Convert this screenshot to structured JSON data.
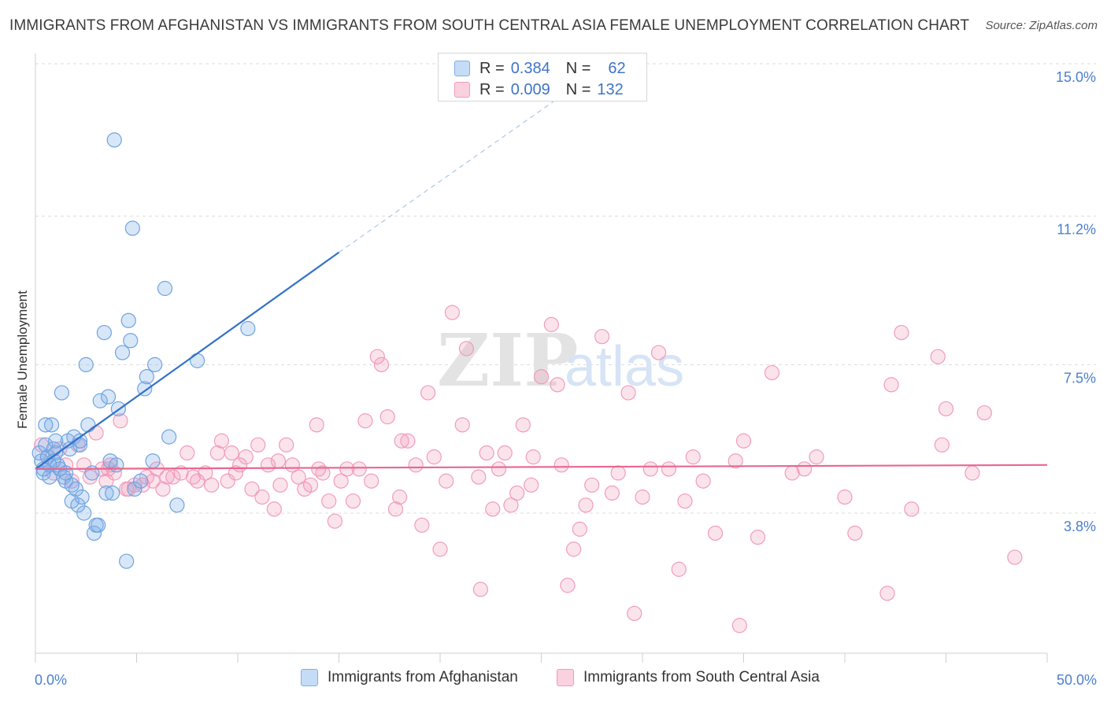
{
  "header": {
    "title": "IMMIGRANTS FROM AFGHANISTAN VS IMMIGRANTS FROM SOUTH CENTRAL ASIA FEMALE UNEMPLOYMENT CORRELATION CHART",
    "source": "Source: ZipAtlas.com"
  },
  "watermark": {
    "zip": "ZIP",
    "atlas": "atlas"
  },
  "legend": {
    "rows": [
      {
        "r_label": "R =",
        "r_value": "0.384",
        "n_label": "N =",
        "n_value": "62"
      },
      {
        "r_label": "R =",
        "r_value": "0.009",
        "n_label": "N =",
        "n_value": "132"
      }
    ]
  },
  "colors": {
    "blue": "#7fb0e8",
    "blue_line": "#3272c9",
    "pink": "#f19cba",
    "pink_line": "#e8678f",
    "tick": "#4a7fcf"
  },
  "chart_data": {
    "type": "scatter",
    "title": "IMMIGRANTS FROM AFGHANISTAN VS IMMIGRANTS FROM SOUTH CENTRAL ASIA FEMALE UNEMPLOYMENT CORRELATION CHART",
    "xlabel": "",
    "ylabel": "Female Unemployment",
    "xlim": [
      0,
      50
    ],
    "ylim": [
      0,
      15.8
    ],
    "x_ticks": [
      {
        "value": 0,
        "label": "0.0%"
      },
      {
        "value": 50,
        "label": "50.0%"
      }
    ],
    "y_ticks": [
      {
        "value": 3.8,
        "label": "3.8%"
      },
      {
        "value": 7.5,
        "label": "7.5%"
      },
      {
        "value": 11.2,
        "label": "11.2%"
      },
      {
        "value": 15.0,
        "label": "15.0%"
      }
    ],
    "grid": true,
    "legend_position": "top-center",
    "series": [
      {
        "name": "Immigrants from Afghanistan",
        "color": "#7fb0e8",
        "trend": {
          "x0": 0,
          "y0": 4.9,
          "x1": 15,
          "y1": 10.3,
          "dashed_to_x": 26,
          "dashed_to_y": 14.2
        },
        "points": [
          [
            0.2,
            5.3
          ],
          [
            0.3,
            5.1
          ],
          [
            0.4,
            4.8
          ],
          [
            0.5,
            5.5
          ],
          [
            0.6,
            5.2
          ],
          [
            0.7,
            4.7
          ],
          [
            0.8,
            6.0
          ],
          [
            0.9,
            5.1
          ],
          [
            1.0,
            5.3
          ],
          [
            1.1,
            5.0
          ],
          [
            1.2,
            4.9
          ],
          [
            1.3,
            6.8
          ],
          [
            1.4,
            4.7
          ],
          [
            1.5,
            4.6
          ],
          [
            1.6,
            5.6
          ],
          [
            1.7,
            5.4
          ],
          [
            1.8,
            4.1
          ],
          [
            1.9,
            5.7
          ],
          [
            2.0,
            4.4
          ],
          [
            2.1,
            4.0
          ],
          [
            2.2,
            5.5
          ],
          [
            2.3,
            4.2
          ],
          [
            2.4,
            3.8
          ],
          [
            2.5,
            7.5
          ],
          [
            2.6,
            6.0
          ],
          [
            2.8,
            4.8
          ],
          [
            2.9,
            3.3
          ],
          [
            3.0,
            3.5
          ],
          [
            3.1,
            3.5
          ],
          [
            3.2,
            6.6
          ],
          [
            3.4,
            8.3
          ],
          [
            3.5,
            4.3
          ],
          [
            3.6,
            6.7
          ],
          [
            3.7,
            5.1
          ],
          [
            3.8,
            4.3
          ],
          [
            3.9,
            13.1
          ],
          [
            4.0,
            5.0
          ],
          [
            4.1,
            6.4
          ],
          [
            4.3,
            7.8
          ],
          [
            4.5,
            2.6
          ],
          [
            4.6,
            8.6
          ],
          [
            4.7,
            8.1
          ],
          [
            4.8,
            10.9
          ],
          [
            4.9,
            4.4
          ],
          [
            5.2,
            4.6
          ],
          [
            5.4,
            6.9
          ],
          [
            5.5,
            7.2
          ],
          [
            5.8,
            5.1
          ],
          [
            5.9,
            7.5
          ],
          [
            6.4,
            9.4
          ],
          [
            6.6,
            5.7
          ],
          [
            7.0,
            4.0
          ],
          [
            8.0,
            7.6
          ],
          [
            10.5,
            8.4
          ],
          [
            0.5,
            6.0
          ],
          [
            1.0,
            5.6
          ],
          [
            0.7,
            5.0
          ],
          [
            1.5,
            4.8
          ],
          [
            2.2,
            5.6
          ],
          [
            0.9,
            5.4
          ],
          [
            1.8,
            4.5
          ],
          [
            0.4,
            4.9
          ]
        ]
      },
      {
        "name": "Immigrants from South Central Asia",
        "color": "#f19cba",
        "trend": {
          "x0": 0,
          "y0": 4.9,
          "x1": 50,
          "y1": 5.0
        },
        "points": [
          [
            0.3,
            5.5
          ],
          [
            0.6,
            5.2
          ],
          [
            0.9,
            4.8
          ],
          [
            1.2,
            5.4
          ],
          [
            1.5,
            5.0
          ],
          [
            1.8,
            4.6
          ],
          [
            2.1,
            5.5
          ],
          [
            2.4,
            5.0
          ],
          [
            2.7,
            4.7
          ],
          [
            3.0,
            5.8
          ],
          [
            3.3,
            4.9
          ],
          [
            3.5,
            4.6
          ],
          [
            3.6,
            4.9
          ],
          [
            3.7,
            5.0
          ],
          [
            3.9,
            4.8
          ],
          [
            4.2,
            6.1
          ],
          [
            4.5,
            4.4
          ],
          [
            4.6,
            4.4
          ],
          [
            4.9,
            4.5
          ],
          [
            5.3,
            4.5
          ],
          [
            5.5,
            4.7
          ],
          [
            5.8,
            4.6
          ],
          [
            6.0,
            4.9
          ],
          [
            6.3,
            4.4
          ],
          [
            6.5,
            4.7
          ],
          [
            6.8,
            4.7
          ],
          [
            7.2,
            4.8
          ],
          [
            7.5,
            5.3
          ],
          [
            7.8,
            4.7
          ],
          [
            8.0,
            4.6
          ],
          [
            8.4,
            4.8
          ],
          [
            8.7,
            4.5
          ],
          [
            9.0,
            5.3
          ],
          [
            9.2,
            5.6
          ],
          [
            9.5,
            4.6
          ],
          [
            9.9,
            4.8
          ],
          [
            10.1,
            5.0
          ],
          [
            10.4,
            5.2
          ],
          [
            10.7,
            4.4
          ],
          [
            11.0,
            5.5
          ],
          [
            11.2,
            4.2
          ],
          [
            11.5,
            5.0
          ],
          [
            11.8,
            3.9
          ],
          [
            12.1,
            4.5
          ],
          [
            12.4,
            5.5
          ],
          [
            12.7,
            5.0
          ],
          [
            13.0,
            4.7
          ],
          [
            13.3,
            4.4
          ],
          [
            13.6,
            4.5
          ],
          [
            13.9,
            6.0
          ],
          [
            14.2,
            4.8
          ],
          [
            14.5,
            4.1
          ],
          [
            14.8,
            3.6
          ],
          [
            15.1,
            4.6
          ],
          [
            15.4,
            4.9
          ],
          [
            15.7,
            4.1
          ],
          [
            16.0,
            4.9
          ],
          [
            16.3,
            6.1
          ],
          [
            16.6,
            4.6
          ],
          [
            16.9,
            7.7
          ],
          [
            17.1,
            7.5
          ],
          [
            17.4,
            6.2
          ],
          [
            17.8,
            3.9
          ],
          [
            18.1,
            5.6
          ],
          [
            18.4,
            5.6
          ],
          [
            18.8,
            5.0
          ],
          [
            19.1,
            3.5
          ],
          [
            19.4,
            6.8
          ],
          [
            19.7,
            5.2
          ],
          [
            20.0,
            2.9
          ],
          [
            20.3,
            4.6
          ],
          [
            20.6,
            8.8
          ],
          [
            21.1,
            6.0
          ],
          [
            21.3,
            7.9
          ],
          [
            22.0,
            1.9
          ],
          [
            22.3,
            5.3
          ],
          [
            22.6,
            3.9
          ],
          [
            22.9,
            4.9
          ],
          [
            23.2,
            5.3
          ],
          [
            23.5,
            4.0
          ],
          [
            23.8,
            4.3
          ],
          [
            24.1,
            6.0
          ],
          [
            24.6,
            5.2
          ],
          [
            25.0,
            7.2
          ],
          [
            25.5,
            8.5
          ],
          [
            25.8,
            7.0
          ],
          [
            26.0,
            5.0
          ],
          [
            26.3,
            2.0
          ],
          [
            26.6,
            2.9
          ],
          [
            26.9,
            3.4
          ],
          [
            27.5,
            4.5
          ],
          [
            28.0,
            8.2
          ],
          [
            28.5,
            4.3
          ],
          [
            28.8,
            4.8
          ],
          [
            29.3,
            6.8
          ],
          [
            29.6,
            1.3
          ],
          [
            30.0,
            4.2
          ],
          [
            30.4,
            4.9
          ],
          [
            30.8,
            7.8
          ],
          [
            31.3,
            4.9
          ],
          [
            31.8,
            2.4
          ],
          [
            32.1,
            4.1
          ],
          [
            32.5,
            5.2
          ],
          [
            33.6,
            3.3
          ],
          [
            34.6,
            5.1
          ],
          [
            34.8,
            1.0
          ],
          [
            35.0,
            5.6
          ],
          [
            35.7,
            3.2
          ],
          [
            36.4,
            7.3
          ],
          [
            37.4,
            4.8
          ],
          [
            38.6,
            5.2
          ],
          [
            40.0,
            4.2
          ],
          [
            40.5,
            3.3
          ],
          [
            42.1,
            1.8
          ],
          [
            42.3,
            7.0
          ],
          [
            42.8,
            8.3
          ],
          [
            43.3,
            3.9
          ],
          [
            44.8,
            5.5
          ],
          [
            44.6,
            7.7
          ],
          [
            45.0,
            6.4
          ],
          [
            46.3,
            4.8
          ],
          [
            46.9,
            6.3
          ],
          [
            48.4,
            2.7
          ],
          [
            12.0,
            5.1
          ],
          [
            9.7,
            5.3
          ],
          [
            14.0,
            4.9
          ],
          [
            18.0,
            4.2
          ],
          [
            21.9,
            4.7
          ],
          [
            24.5,
            4.5
          ],
          [
            27.2,
            4.0
          ],
          [
            33.0,
            4.6
          ],
          [
            38.0,
            4.9
          ]
        ]
      }
    ]
  },
  "bottom_legend": {
    "items": [
      {
        "label": "Immigrants from Afghanistan"
      },
      {
        "label": "Immigrants from South Central Asia"
      }
    ]
  }
}
